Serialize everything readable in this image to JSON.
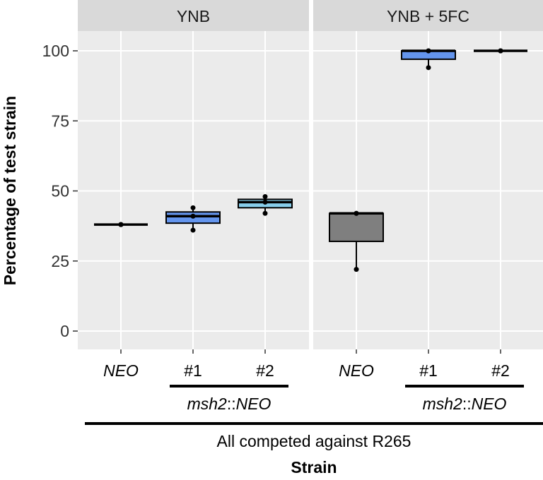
{
  "chart_data": {
    "type": "boxplot",
    "ylabel": "Percentage of test strain",
    "xlabel": "Strain",
    "ylim": [
      -5,
      107
    ],
    "yticks": [
      0,
      25,
      50,
      75,
      100
    ],
    "grid": true,
    "categories": [
      "NEO",
      "#1",
      "#2"
    ],
    "group_label": "msh2::NEO",
    "group_label_parts": [
      "msh2",
      "::",
      "NEO"
    ],
    "footer_label": "All competed against R265",
    "colors": {
      "NEO": "#7f7f7f",
      "#1": "#6495ed",
      "#2": "#87ceeb",
      "panel": "#ebebeb",
      "strip": "#d9d9d9"
    },
    "panels": [
      {
        "title": "YNB",
        "boxes": [
          {
            "category": "NEO",
            "q1": 38,
            "median": 38,
            "q3": 38,
            "min": 38,
            "max": 38,
            "points": [
              38,
              38,
              38
            ]
          },
          {
            "category": "#1",
            "q1": 38.5,
            "median": 41,
            "q3": 42.5,
            "min": 36,
            "max": 44,
            "points": [
              36,
              41,
              44
            ]
          },
          {
            "category": "#2",
            "q1": 44,
            "median": 46,
            "q3": 47,
            "min": 42,
            "max": 48,
            "points": [
              42,
              46,
              48
            ]
          }
        ]
      },
      {
        "title": "YNB + 5FC",
        "boxes": [
          {
            "category": "NEO",
            "q1": 32,
            "median": 42,
            "q3": 42,
            "min": 22,
            "max": 42,
            "points": [
              22,
              42,
              42
            ]
          },
          {
            "category": "#1",
            "q1": 97,
            "median": 100,
            "q3": 100,
            "min": 94,
            "max": 100,
            "points": [
              94,
              100,
              100
            ]
          },
          {
            "category": "#2",
            "q1": 100,
            "median": 100,
            "q3": 100,
            "min": 100,
            "max": 100,
            "points": [
              100,
              100,
              100
            ]
          }
        ]
      }
    ]
  }
}
